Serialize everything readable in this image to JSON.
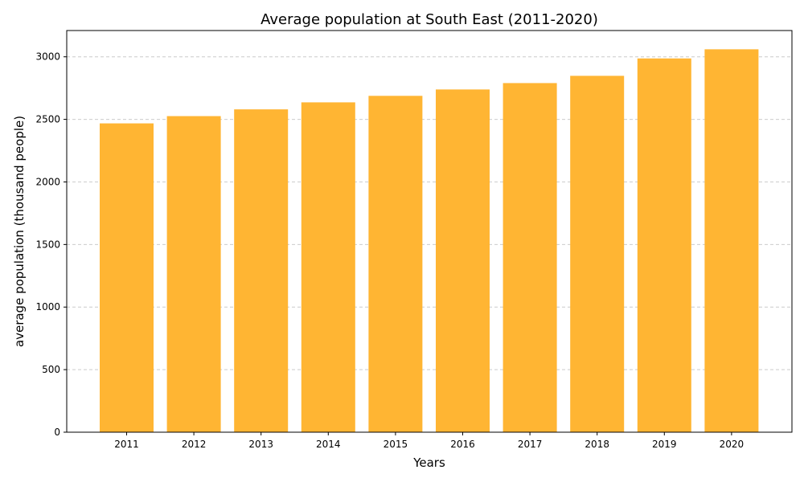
{
  "chart_data": {
    "type": "bar",
    "title": "Average population at South East (2011-2020)",
    "xlabel": "Years",
    "ylabel": "average population (thousand people)",
    "categories": [
      "2011",
      "2012",
      "2013",
      "2014",
      "2015",
      "2016",
      "2017",
      "2018",
      "2019",
      "2020"
    ],
    "values": [
      2468,
      2526,
      2580,
      2636,
      2688,
      2739,
      2790,
      2848,
      2987,
      3060
    ],
    "ylim": [
      0,
      3210
    ],
    "yticks": [
      0,
      500,
      1000,
      1500,
      2000,
      2500,
      3000
    ],
    "grid": "y-dashed",
    "bar_color": "#FFB533"
  }
}
